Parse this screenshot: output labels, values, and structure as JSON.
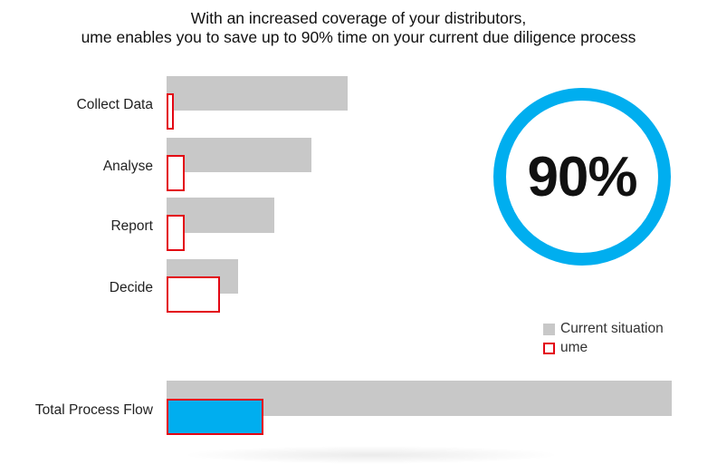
{
  "title": {
    "line1": "With an increased coverage of your distributors,",
    "line2": "ume enables you to save up to 90% time on your current due diligence process"
  },
  "ring": {
    "value": "90%",
    "color": "#00aeef"
  },
  "legend": {
    "current": "Current situation",
    "ume": "ume"
  },
  "colors": {
    "current": "#c8c8c8",
    "ume_outline": "#e30613",
    "total_ume_fill": "#00aeef"
  },
  "chart_data": {
    "type": "bar",
    "orientation": "horizontal",
    "categories": [
      "Collect Data",
      "Analyse",
      "Report",
      "Decide",
      "Total Process Flow"
    ],
    "series": [
      {
        "name": "Current situation",
        "values": [
          200,
          160,
          119,
          79,
          558
        ]
      },
      {
        "name": "ume",
        "values": [
          8,
          20,
          20,
          59,
          107
        ]
      }
    ],
    "title": "With an increased coverage of your distributors, ume enables you to save up to 90% time on your current due diligence process",
    "xlabel": "",
    "ylabel": "",
    "grid": false,
    "legend": "right"
  }
}
